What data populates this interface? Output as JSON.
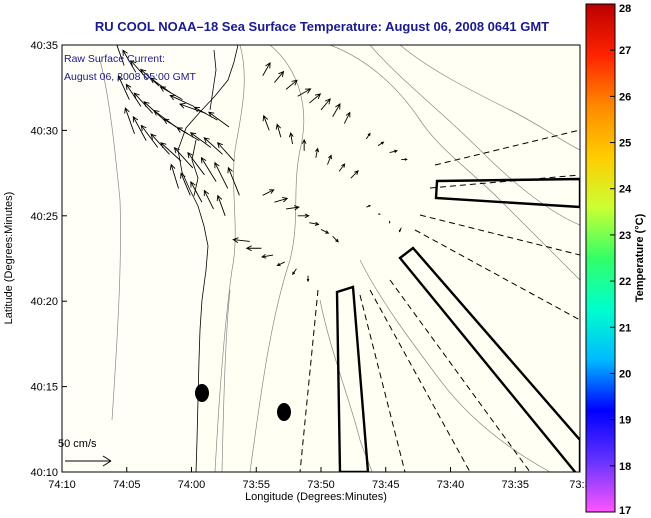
{
  "chart_data": {
    "type": "vector-field map",
    "title": "RU COOL  NOAA–18  Sea Surface Temperature:  August 06, 2008 0641 GMT",
    "annotation_line1": "Raw Surface Current:",
    "annotation_line2": "August 06, 2008 05:00 GMT",
    "xlabel": "Longitude (Degrees:Minutes)",
    "ylabel": "Latitude (Degrees:Minutes)",
    "x_ticks": [
      "74:10",
      "74:05",
      "74:00",
      "73:55",
      "73:50",
      "73:45",
      "73:40",
      "73:35",
      "73:3"
    ],
    "y_ticks": [
      "40:35",
      "40:30",
      "40:25",
      "40:20",
      "40:15",
      "40:10"
    ],
    "xlim_minutes_west": [
      70,
      30
    ],
    "ylim_minutes_north": [
      10,
      35
    ],
    "scale_label": "50 cm/s",
    "colorbar": {
      "label": "Temperature (°C)",
      "min": 17,
      "max": 28,
      "ticks": [
        "28",
        "27",
        "26",
        "25",
        "24",
        "23",
        "22",
        "21",
        "20",
        "19",
        "18",
        "17"
      ],
      "colors": [
        "#cc0000",
        "#ff3300",
        "#ff9900",
        "#ffdd00",
        "#ccff33",
        "#33ff66",
        "#00ffcc",
        "#00bbff",
        "#0000ff",
        "#6633ff",
        "#ff55ff"
      ]
    },
    "current_vectors": [
      [
        65.2,
        33.8,
        -10,
        28
      ],
      [
        64.3,
        33.4,
        -14,
        24
      ],
      [
        63.4,
        33,
        -18,
        20
      ],
      [
        62.5,
        32.6,
        -20,
        18
      ],
      [
        61.6,
        32.2,
        -22,
        16
      ],
      [
        60.7,
        31.8,
        -24,
        14
      ],
      [
        59.8,
        31.4,
        -26,
        12
      ],
      [
        58.9,
        31,
        -28,
        10
      ],
      [
        58,
        30.6,
        -25,
        14
      ],
      [
        57.1,
        30.2,
        -22,
        16
      ],
      [
        64.8,
        31.8,
        -12,
        26
      ],
      [
        63.9,
        31.4,
        -16,
        24
      ],
      [
        63,
        31,
        -20,
        22
      ],
      [
        62.1,
        30.6,
        -22,
        20
      ],
      [
        61.2,
        30.2,
        -24,
        18
      ],
      [
        60.3,
        29.8,
        -26,
        16
      ],
      [
        59.4,
        29.4,
        -24,
        14
      ],
      [
        58.5,
        29,
        -22,
        16
      ],
      [
        57.6,
        28.6,
        -20,
        18
      ],
      [
        56.7,
        28.2,
        -18,
        20
      ],
      [
        64.4,
        29.8,
        -10,
        28
      ],
      [
        63.5,
        29.4,
        -14,
        26
      ],
      [
        62.6,
        29,
        -18,
        24
      ],
      [
        61.7,
        28.6,
        -20,
        22
      ],
      [
        60.8,
        28.2,
        -22,
        20
      ],
      [
        59.9,
        27.8,
        -20,
        22
      ],
      [
        59,
        27.4,
        -18,
        24
      ],
      [
        58.1,
        27,
        -16,
        26
      ],
      [
        57.2,
        26.6,
        -14,
        28
      ],
      [
        56.3,
        26.2,
        -12,
        30
      ],
      [
        61,
        26.6,
        -8,
        26
      ],
      [
        60.1,
        26.2,
        -10,
        24
      ],
      [
        59.2,
        25.8,
        -12,
        22
      ],
      [
        58.3,
        25.4,
        -10,
        20
      ],
      [
        57.4,
        25,
        -8,
        22
      ],
      [
        54.5,
        33.2,
        8,
        14
      ],
      [
        53.6,
        32.8,
        10,
        12
      ],
      [
        52.7,
        32.4,
        12,
        10
      ],
      [
        51.8,
        32,
        14,
        8
      ],
      [
        50.9,
        31.6,
        12,
        10
      ],
      [
        50,
        31.2,
        10,
        12
      ],
      [
        49.1,
        30.8,
        8,
        14
      ],
      [
        48.2,
        30.4,
        6,
        12
      ],
      [
        54,
        30,
        -6,
        16
      ],
      [
        53.1,
        29.6,
        -4,
        14
      ],
      [
        52.2,
        29.2,
        -2,
        12
      ],
      [
        51.3,
        28.8,
        0,
        12
      ],
      [
        50.4,
        28.4,
        2,
        10
      ],
      [
        49.5,
        28,
        4,
        10
      ],
      [
        48.6,
        27.6,
        6,
        8
      ],
      [
        47.7,
        27.2,
        8,
        8
      ],
      [
        54.5,
        26.2,
        12,
        6
      ],
      [
        53.6,
        25.8,
        14,
        4
      ],
      [
        52.7,
        25.4,
        14,
        2
      ],
      [
        51.8,
        25,
        12,
        0
      ],
      [
        50.9,
        24.6,
        10,
        -2
      ],
      [
        50,
        24.2,
        8,
        -4
      ],
      [
        49.1,
        23.8,
        6,
        -6
      ],
      [
        55.5,
        23.5,
        -18,
        2
      ],
      [
        54.6,
        23.1,
        -16,
        0
      ],
      [
        53.7,
        22.7,
        -12,
        -2
      ],
      [
        52.8,
        22.3,
        -8,
        -4
      ],
      [
        51.9,
        21.9,
        -4,
        -6
      ],
      [
        51,
        21.5,
        0,
        -6
      ],
      [
        46.5,
        29.5,
        4,
        6
      ],
      [
        45.6,
        29.1,
        6,
        4
      ],
      [
        44.7,
        28.7,
        8,
        2
      ],
      [
        43.8,
        28.3,
        6,
        0
      ],
      [
        46.5,
        25.5,
        4,
        2
      ],
      [
        45.6,
        25.1,
        2,
        0
      ],
      [
        44.7,
        24.7,
        0,
        -2
      ],
      [
        43.8,
        24.3,
        -2,
        -4
      ]
    ]
  }
}
